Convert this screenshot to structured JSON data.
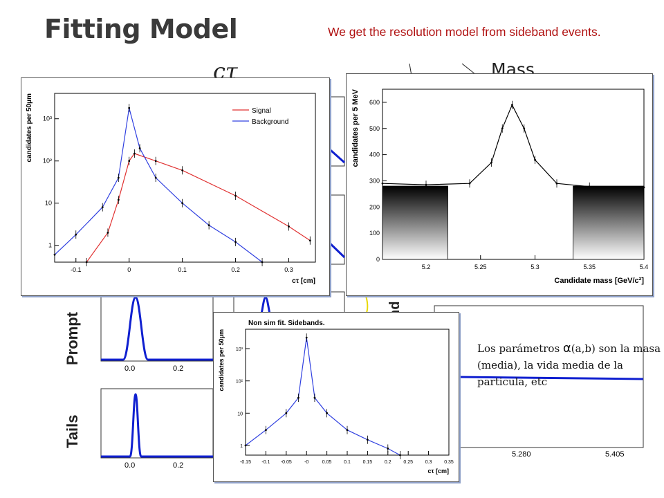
{
  "slide": {
    "title": "Fitting Model",
    "annotation_red": "We get the resolution model from sideband events.",
    "ctau_heading": "cτ",
    "mass_heading": "Mass",
    "background_label_fragment": "nd",
    "label_prompt": "Prompt",
    "label_tails": "Tails",
    "small_ticks_left": [
      "0.0",
      "0.2"
    ],
    "small_ticks_right": [
      "5.280",
      "5.405"
    ],
    "annotation_black_pre": "Los parámetros ",
    "annotation_black_alpha": "α",
    "annotation_black_post": "(a,b) son la masa (media), la vida media de la particula, etc",
    "colors": {
      "signal": "#e03030",
      "background": "#3040e0",
      "fit": "#000000",
      "annotation": "#b01010",
      "blue_curve": "#1020d0"
    }
  },
  "chart_data": [
    {
      "type": "line",
      "panel": "ctau",
      "xlabel": "cτ [cm]",
      "ylabel": "candidates per 50μm",
      "ylim_log": [
        0.4,
        4000
      ],
      "xlim": [
        -0.14,
        0.35
      ],
      "x_ticks": [
        "-0.1",
        "0",
        "0.1",
        "0.2",
        "0.3"
      ],
      "y_ticks": [
        "1",
        "10",
        "10²",
        "10³"
      ],
      "legend": [
        "Signal",
        "Background"
      ],
      "legend_position": "top-right",
      "series": [
        {
          "name": "Signal",
          "x": [
            -0.08,
            -0.04,
            -0.02,
            0.0,
            0.01,
            0.05,
            0.1,
            0.2,
            0.3,
            0.34
          ],
          "y": [
            0.4,
            2,
            12,
            100,
            150,
            100,
            60,
            15,
            2.8,
            1.3
          ]
        },
        {
          "name": "Background",
          "x": [
            -0.14,
            -0.1,
            -0.05,
            -0.02,
            0.0,
            0.02,
            0.05,
            0.1,
            0.15,
            0.2,
            0.25
          ],
          "y": [
            0.6,
            1.8,
            8,
            40,
            1800,
            200,
            40,
            10,
            3,
            1.2,
            0.4
          ]
        }
      ]
    },
    {
      "type": "line",
      "panel": "mass",
      "xlabel": "Candidate mass [GeV/c²]",
      "ylabel": "candidates per 5 MeV",
      "xlim": [
        5.16,
        5.4
      ],
      "ylim": [
        0,
        650
      ],
      "x_ticks": [
        "5.2",
        "5.25",
        "5.3",
        "5.35",
        "5.4"
      ],
      "y_ticks": [
        "0",
        "100",
        "200",
        "300",
        "400",
        "500",
        "600"
      ],
      "series": [
        {
          "name": "",
          "x": [
            5.16,
            5.2,
            5.24,
            5.26,
            5.27,
            5.279,
            5.29,
            5.3,
            5.32,
            5.35,
            5.4
          ],
          "y": [
            290,
            285,
            290,
            370,
            500,
            590,
            500,
            380,
            290,
            278,
            275
          ]
        }
      ]
    },
    {
      "type": "line",
      "panel": "sidebands",
      "title": "Non sim fit. Sidebands.",
      "xlabel": "cτ [cm]",
      "ylabel": "candidates per 50μm",
      "xlim": [
        -0.15,
        0.35
      ],
      "ylim_log": [
        0.5,
        4000
      ],
      "x_ticks": [
        "-0.15",
        "-0.1",
        "-0.05",
        "-0",
        "0.05",
        "0.1",
        "0.15",
        "0.2",
        "0.25",
        "0.3",
        "0.35"
      ],
      "y_ticks": [
        "1",
        "10",
        "10²",
        "10³"
      ],
      "series": [
        {
          "name": "",
          "x": [
            -0.15,
            -0.1,
            -0.05,
            -0.02,
            0.0,
            0.02,
            0.05,
            0.1,
            0.15,
            0.2,
            0.23
          ],
          "y": [
            1,
            3,
            10,
            30,
            2200,
            30,
            10,
            3,
            1.5,
            0.8,
            0.5
          ]
        }
      ]
    }
  ]
}
